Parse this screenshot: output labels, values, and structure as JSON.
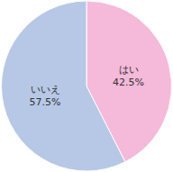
{
  "chart_data": {
    "type": "pie",
    "categories": [
      "はい",
      "いいえ"
    ],
    "values": [
      42.5,
      57.5
    ],
    "value_labels": [
      "42.5%",
      "57.5%"
    ],
    "colors": [
      "#f5b9da",
      "#b7c8e6"
    ],
    "data_labels": true
  }
}
